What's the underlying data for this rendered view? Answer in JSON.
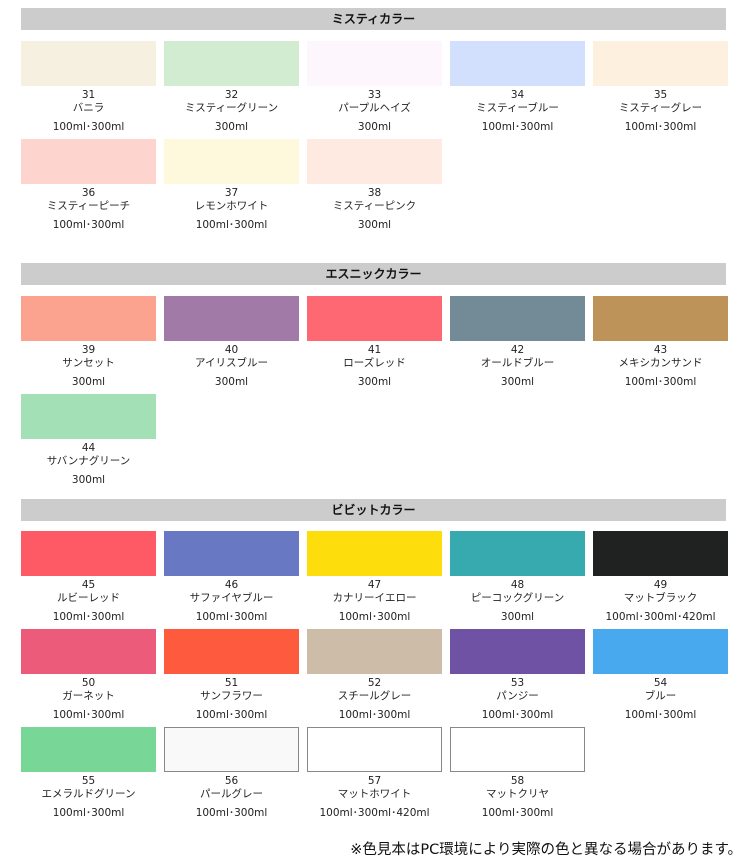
{
  "sections": [
    {
      "title": "ミスティカラー",
      "items": [
        {
          "num": "31",
          "name": "バニラ",
          "size": "100ml･300ml",
          "color": "#f6f0e0"
        },
        {
          "num": "32",
          "name": "ミスティーグリーン",
          "size": "300ml",
          "color": "#d1ecd0"
        },
        {
          "num": "33",
          "name": "パープルヘイズ",
          "size": "300ml",
          "color": "#fdf6fd"
        },
        {
          "num": "34",
          "name": "ミスティーブルー",
          "size": "100ml･300ml",
          "color": "#d3e0fd"
        },
        {
          "num": "35",
          "name": "ミスティーグレー",
          "size": "100ml･300ml",
          "color": "#fef0de"
        },
        {
          "num": "36",
          "name": "ミスティーピーチ",
          "size": "100ml･300ml",
          "color": "#fed5ce"
        },
        {
          "num": "37",
          "name": "レモンホワイト",
          "size": "100ml･300ml",
          "color": "#fef8dc"
        },
        {
          "num": "38",
          "name": "ミスティーピンク",
          "size": "300ml",
          "color": "#feeae0"
        }
      ]
    },
    {
      "title": "エスニックカラー",
      "items": [
        {
          "num": "39",
          "name": "サンセット",
          "size": "300ml",
          "color": "#fca390"
        },
        {
          "num": "40",
          "name": "アイリスブルー",
          "size": "300ml",
          "color": "#a27aa8"
        },
        {
          "num": "41",
          "name": "ローズレッド",
          "size": "300ml",
          "color": "#fe6872"
        },
        {
          "num": "42",
          "name": "オールドブルー",
          "size": "300ml",
          "color": "#738b96"
        },
        {
          "num": "43",
          "name": "メキシカンサンド",
          "size": "100ml･300ml",
          "color": "#bd935a"
        },
        {
          "num": "44",
          "name": "サバンナグリーン",
          "size": "300ml",
          "color": "#a3e0b5"
        }
      ]
    },
    {
      "title": "ビビットカラー",
      "items": [
        {
          "num": "45",
          "name": "ルビーレッド",
          "size": "100ml･300ml",
          "color": "#fe5a66"
        },
        {
          "num": "46",
          "name": "サファイヤブルー",
          "size": "100ml･300ml",
          "color": "#6878c3"
        },
        {
          "num": "47",
          "name": "カナリーイエロー",
          "size": "100ml･300ml",
          "color": "#fedd0c"
        },
        {
          "num": "48",
          "name": "ピーコックグリーン",
          "size": "300ml",
          "color": "#37aaaf"
        },
        {
          "num": "49",
          "name": "マットブラック",
          "size": "100ml･300ml･420ml",
          "color": "#1f2221"
        },
        {
          "num": "50",
          "name": "ガーネット",
          "size": "100ml･300ml",
          "color": "#ec5b79"
        },
        {
          "num": "51",
          "name": "サンフラワー",
          "size": "100ml･300ml",
          "color": "#fe5a3e"
        },
        {
          "num": "52",
          "name": "スチールグレー",
          "size": "100ml･300ml",
          "color": "#cdbca8"
        },
        {
          "num": "53",
          "name": "パンジー",
          "size": "100ml･300ml",
          "color": "#7052a4"
        },
        {
          "num": "54",
          "name": "ブルー",
          "size": "100ml･300ml",
          "color": "#49a9ee"
        },
        {
          "num": "55",
          "name": "エメラルドグリーン",
          "size": "100ml･300ml",
          "color": "#78d696"
        },
        {
          "num": "56",
          "name": "パールグレー",
          "size": "100ml･300ml",
          "color": "#f9f9f9",
          "outlined": true
        },
        {
          "num": "57",
          "name": "マットホワイト",
          "size": "100ml･300ml･420ml",
          "color": "#ffffff",
          "outlined": true
        },
        {
          "num": "58",
          "name": "マットクリヤ",
          "size": "100ml･300ml",
          "color": "#ffffff",
          "outlined": true
        }
      ]
    }
  ],
  "footer": "※色見本はPC環境により実際の色と異なる場合があります。"
}
